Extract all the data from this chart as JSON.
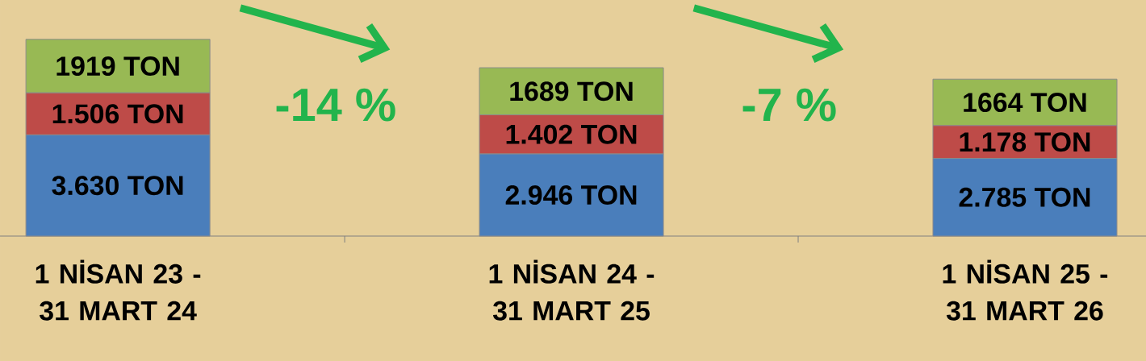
{
  "chart_data": {
    "type": "bar",
    "stacked": true,
    "categories": [
      "1 NİSAN 23 - 31 MART 24",
      "1 NİSAN 24 - 31 MART 25",
      "1 NİSAN 25 - 31 MART 26"
    ],
    "series": [
      {
        "color": "#4a7ebb",
        "values": [
          3630,
          2946,
          2785
        ],
        "value_labels": [
          "3.630 TON",
          "2.946 TON",
          "2.785 TON"
        ]
      },
      {
        "color": "#be4b48",
        "values": [
          1506,
          1402,
          1178
        ],
        "value_labels": [
          "1.506 TON",
          "1.402 TON",
          "1.178 TON"
        ]
      },
      {
        "color": "#98b954",
        "values": [
          1919,
          1689,
          1664
        ],
        "value_labels": [
          "1919 TON",
          "1689 TON",
          "1664 TON"
        ]
      }
    ],
    "annotations": [
      "-14 %",
      "-7 %"
    ]
  }
}
